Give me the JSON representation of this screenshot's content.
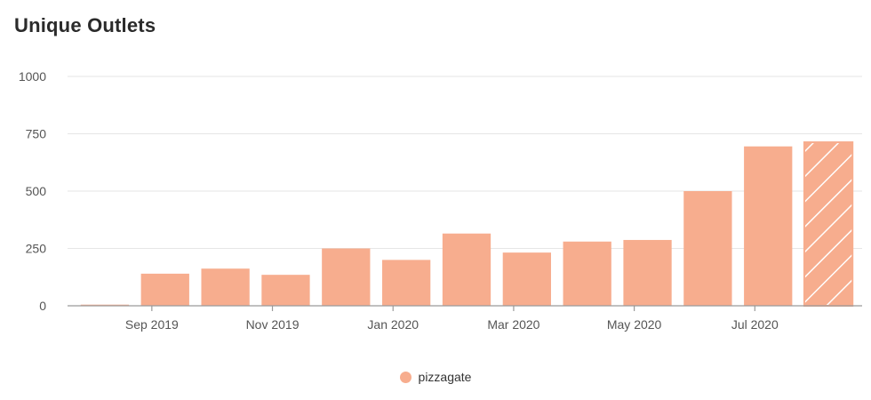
{
  "title": "Unique Outlets",
  "colors": {
    "bar": "#f7ad8e",
    "grid": "#e6e6e6",
    "axis": "#9a9a9a",
    "tick_text": "#555555"
  },
  "chart_data": {
    "type": "bar",
    "title": "Unique Outlets",
    "xlabel": "",
    "ylabel": "",
    "ylim": [
      0,
      1000
    ],
    "yticks": [
      0,
      250,
      500,
      750,
      1000
    ],
    "grid": true,
    "legend_position": "bottom-center",
    "categories": [
      "Aug 2019",
      "Sep 2019",
      "Oct 2019",
      "Nov 2019",
      "Dec 2019",
      "Jan 2020",
      "Feb 2020",
      "Mar 2020",
      "Apr 2020",
      "May 2020",
      "Jun 2020",
      "Jul 2020",
      "Aug 2020"
    ],
    "xtick_labels": [
      "",
      "Sep 2019",
      "",
      "Nov 2019",
      "",
      "Jan 2020",
      "",
      "Mar 2020",
      "",
      "May 2020",
      "",
      "Jul 2020",
      ""
    ],
    "series": [
      {
        "name": "pizzagate",
        "values": [
          5,
          140,
          162,
          135,
          250,
          200,
          315,
          232,
          280,
          287,
          500,
          695,
          713
        ],
        "partial_last": true
      }
    ]
  }
}
